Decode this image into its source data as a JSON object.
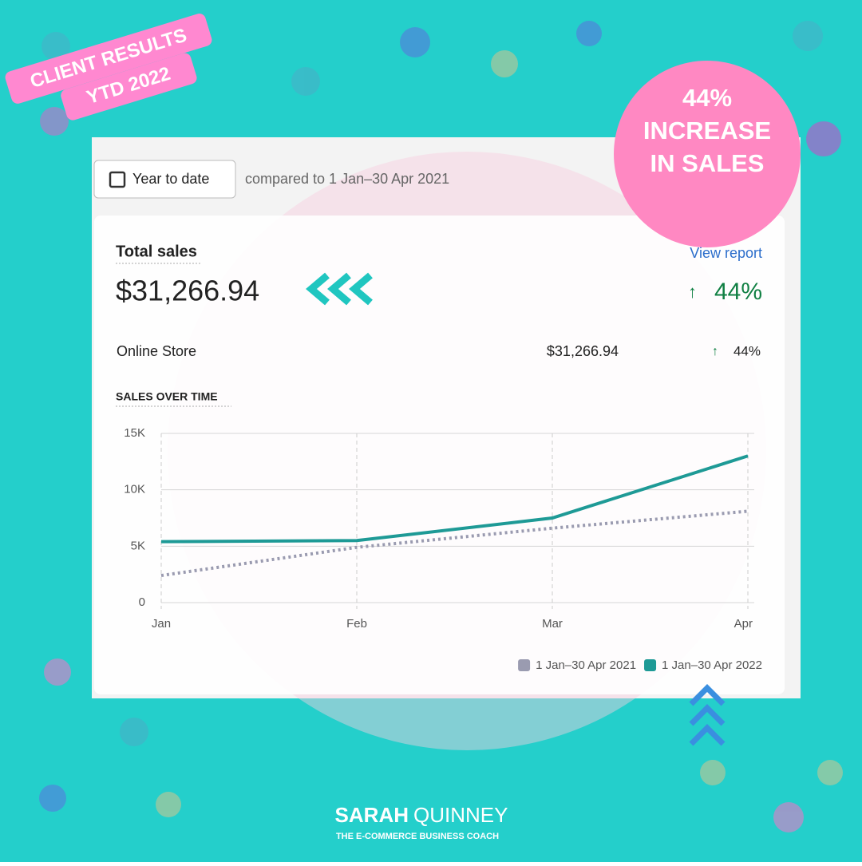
{
  "badge": {
    "line1": "CLIENT RESULTS",
    "line2": "YTD 2022"
  },
  "callout": {
    "line1": "44%",
    "line2": "INCREASE",
    "line3": "IN SALES"
  },
  "header": {
    "button": "Year to date",
    "comparison": "compared to 1 Jan–30 Apr 2021"
  },
  "summary": {
    "label": "Total sales",
    "amount": "$31,266.94",
    "link": "View report",
    "change": "44%",
    "row_label": "Online Store",
    "row_amount": "$31,266.94",
    "row_change": "44%"
  },
  "chart_data": {
    "type": "line",
    "title": "SALES OVER TIME",
    "categories": [
      "Jan",
      "Feb",
      "Mar",
      "Apr"
    ],
    "series": [
      {
        "name": "1 Jan–30 Apr 2021",
        "color": "#9a9bb0",
        "values": [
          2400,
          4900,
          6600,
          8100
        ]
      },
      {
        "name": "1 Jan–30 Apr 2022",
        "color": "#1e9a96",
        "values": [
          5400,
          5500,
          7500,
          13000
        ]
      }
    ],
    "ylim": [
      0,
      15000
    ],
    "yticks": [
      0,
      {
        "value": 5000,
        "label": "5K"
      },
      {
        "value": 10000,
        "label": "10K"
      },
      {
        "value": 15000,
        "label": "15K"
      }
    ],
    "grid": true
  },
  "footer": {
    "brand_first": "SARAH",
    "brand_last": "QUINNEY",
    "tagline": "THE E-COMMERCE BUSINESS COACH"
  }
}
